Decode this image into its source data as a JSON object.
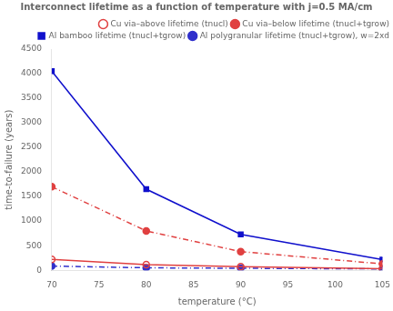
{
  "chart_data": {
    "type": "line",
    "title": "Interconnect lifetime as a function of temperature with j=0.5 MA/cm",
    "xlabel": "temperature (°C)",
    "ylabel": "time-to-failure (years)",
    "x": [
      70,
      80,
      90,
      105
    ],
    "series": [
      {
        "name": "Cu via–above lifetime (tnucl)",
        "color": "#e04040",
        "marker": "open_circle",
        "line_style": "solid",
        "values": [
          220,
          115,
          75,
          30
        ]
      },
      {
        "name": "Cu via–below lifetime (tnucl+tgrow)",
        "color": "#e04040",
        "marker": "circle",
        "line_style": "dashdot",
        "values": [
          1700,
          800,
          380,
          130
        ]
      },
      {
        "name": "Al bamboo lifetime (tnucl+tgrow)",
        "color": "#1010cc",
        "marker": "square",
        "line_style": "solid",
        "values": [
          4050,
          1650,
          730,
          215
        ]
      },
      {
        "name": "Al polygranular lifetime (tnucl+tgrow), w=2xd",
        "color": "#3030cc",
        "marker": "circle",
        "line_style": "dashdot",
        "values": [
          85,
          50,
          40,
          28
        ]
      }
    ],
    "xlim": [
      70,
      105
    ],
    "ylim": [
      0,
      4500
    ],
    "xticks": [
      70,
      75,
      80,
      85,
      90,
      95,
      100,
      105
    ],
    "yticks": [
      0,
      500,
      1000,
      1500,
      2000,
      2500,
      3000,
      3500,
      4000,
      4500
    ],
    "grid": false,
    "legend": "upper right"
  }
}
